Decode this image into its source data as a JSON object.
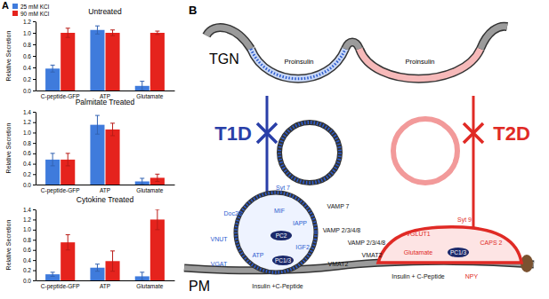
{
  "chart_data": [
    {
      "type": "bar",
      "title": "Untreated",
      "y_label": "Relative Secretion",
      "categories": [
        "C-peptide-GFP",
        "ATP",
        "Glutamate"
      ],
      "series": [
        {
          "name": "25 mM KCl",
          "color": "#3f7bdc",
          "values": [
            0.38,
            1.05,
            0.08
          ],
          "errors": [
            0.06,
            0.07,
            0.08
          ]
        },
        {
          "name": "90 mM KCl",
          "color": "#e5231d",
          "values": [
            1.0,
            1.0,
            1.0
          ],
          "errors": [
            0.08,
            0.05,
            0.03
          ]
        }
      ],
      "legend": "upper left",
      "ylim": [
        0,
        1.2
      ],
      "yticks": [
        {
          "value": 0,
          "label": "0.0"
        },
        {
          "value": 0.2,
          "label": "0.2"
        },
        {
          "value": 0.4,
          "label": "0.4"
        },
        {
          "value": 0.6,
          "label": "0.6"
        },
        {
          "value": 0.8,
          "label": "0.8"
        },
        {
          "value": 1,
          "label": "1.0"
        },
        {
          "value": 1.2,
          "label": "1.2"
        }
      ]
    },
    {
      "type": "bar",
      "title": "Palmitate Treated",
      "y_label": "Relative Secretion",
      "categories": [
        "C-peptide-GFP",
        "ATP",
        "Glutamate"
      ],
      "series": [
        {
          "color": "#3f7bdc",
          "values": [
            0.48,
            1.15,
            0.06
          ],
          "errors": [
            0.12,
            0.18,
            0.06
          ]
        },
        {
          "color": "#e5231d",
          "values": [
            0.48,
            1.06,
            0.13
          ],
          "errors": [
            0.12,
            0.12,
            0.07
          ]
        }
      ],
      "ylim": [
        0,
        1.4
      ],
      "yticks": [
        {
          "value": 0,
          "label": "0.0"
        },
        {
          "value": 0.2,
          "label": "0.2"
        },
        {
          "value": 0.4,
          "label": "0.4"
        },
        {
          "value": 0.6,
          "label": "0.6"
        },
        {
          "value": 0.8,
          "label": "0.8"
        },
        {
          "value": 1,
          "label": "1.0"
        },
        {
          "value": 1.2,
          "label": "1.2"
        },
        {
          "value": 1.4,
          "label": "1.4"
        }
      ]
    },
    {
      "type": "bar",
      "title": "Cytokine Treated",
      "y_label": "Relative Secretion",
      "categories": [
        "C-peptide-GFP",
        "ATP",
        "Glutamate"
      ],
      "series": [
        {
          "color": "#3f7bdc",
          "values": [
            0.12,
            0.25,
            0.08
          ],
          "errors": [
            0.04,
            0.07,
            0.08
          ]
        },
        {
          "color": "#e5231d",
          "values": [
            0.75,
            0.38,
            1.2
          ],
          "errors": [
            0.15,
            0.2,
            0.2
          ]
        }
      ],
      "ylim": [
        0,
        1.4
      ],
      "yticks": [
        {
          "value": 0,
          "label": "0.0"
        },
        {
          "value": 0.2,
          "label": "0.2"
        },
        {
          "value": 0.4,
          "label": "0.4"
        },
        {
          "value": 0.6,
          "label": "0.6"
        },
        {
          "value": 0.8,
          "label": "0.8"
        },
        {
          "value": 1,
          "label": "1.0"
        },
        {
          "value": 1.2,
          "label": "1.2"
        },
        {
          "value": 1.4,
          "label": "1.4"
        }
      ]
    }
  ],
  "panel_a": {
    "label": "A"
  },
  "diagram": {
    "label": "B",
    "tgn": "TGN",
    "pm": "PM",
    "proinsulin": [
      "Proinsulin",
      "Proinsulin"
    ],
    "t1d": "T1D",
    "t2d": "T2D",
    "t1d_granule_labels": [
      "Doc2B",
      "Syt 7",
      "VNUT",
      "VGAT",
      "ATP",
      "MIF",
      "IAPP",
      "PC2",
      "PC1/3",
      "IGF2",
      "VAMP 7",
      "VAMP 2/3/4/8",
      "VMAT2",
      "Insulin +C-Peptide"
    ],
    "t2d_granule_labels": [
      "VAMP 2/3/4/8",
      "VMAT2",
      "VGLUT1",
      "Syt 9",
      "CAPS 2",
      "Glutamate",
      "PC1/3",
      "Insulin + C-Peptide",
      "NPY"
    ]
  }
}
